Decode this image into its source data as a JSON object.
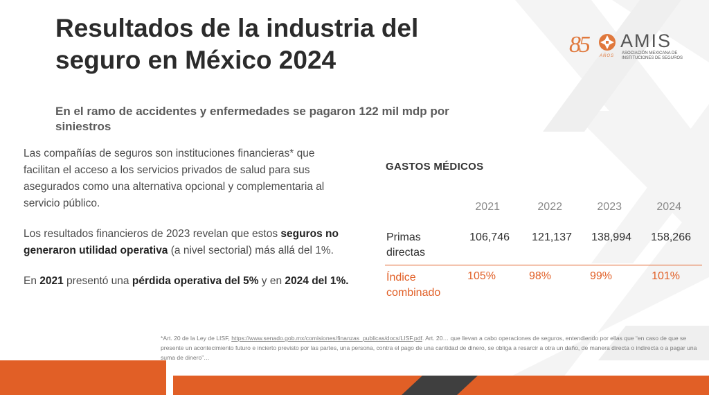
{
  "title": "Resultados de la industria del seguro en México 2024",
  "logo": {
    "number": "85",
    "anos": "AÑOS",
    "name": "AMIS",
    "subtitle": "Asociación Mexicana de Instituciones de Seguros"
  },
  "subtitle": "En el ramo de accidentes y enfermedades se pagaron 122 mil mdp por siniestros",
  "body": {
    "p1": "Las compañías de seguros son instituciones financieras* que facilitan el acceso a los servicios privados de salud para sus asegurados como una alternativa opcional y complementaria al servicio público.",
    "p2_a": "Los resultados financieros de 2023 revelan que estos ",
    "p2_b": "seguros no generaron utilidad operativa",
    "p2_c": " (a nivel sectorial) más allá del 1%.",
    "p3_a": "En ",
    "p3_b": "2021",
    "p3_c": " presentó una ",
    "p3_d": "pérdida operativa del 5%",
    "p3_e": " y en ",
    "p3_f": "2024 del 1%."
  },
  "table": {
    "title": "GASTOS MÉDICOS",
    "years": [
      "2021",
      "2022",
      "2023",
      "2024"
    ],
    "rows": [
      {
        "label": "Primas directas",
        "values": [
          "106,746",
          "121,137",
          "138,994",
          "158,266"
        ]
      },
      {
        "label": "Índice combinado",
        "values": [
          "105%",
          "98%",
          "99%",
          "101%"
        ]
      }
    ]
  },
  "footnote": {
    "prefix": "*Art. 20 de la Ley de LISF, ",
    "link": "https://www.senado.gob.mx/comisiones/finanzas_publicas/docs/LISF.pdf",
    "rest": ". Art. 20… que llevan a cabo operaciones de seguros, entendiendo por ellas que “en caso de que se presente un acontecimiento futuro e incierto previsto por las partes, una persona, contra el pago de una cantidad de dinero, se obliga a resarcir a otra un daño, de manera directa o indirecta o a pagar una suma de dinero”…"
  },
  "colors": {
    "accent": "#e15f26",
    "logo": "#e0783c",
    "dark_bar": "#3f3f3f"
  }
}
